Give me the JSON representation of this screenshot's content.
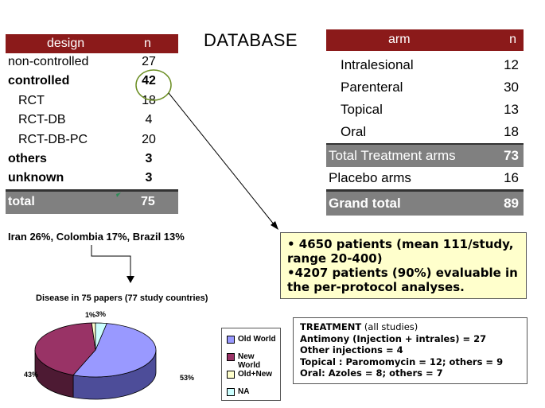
{
  "title": "DATABASE",
  "design_table": {
    "header_label": "design",
    "header_value": "n",
    "rows": [
      {
        "label": "non-controlled",
        "value": "27"
      },
      {
        "label": "controlled",
        "value": "42"
      },
      {
        "label": "RCT",
        "value": "18"
      },
      {
        "label": "RCT-DB",
        "value": "4"
      },
      {
        "label": "RCT-DB-PC",
        "value": "20"
      },
      {
        "label": "others",
        "value": "3"
      },
      {
        "label": "unknown",
        "value": "3"
      }
    ],
    "total_label": "total",
    "total_value": "75"
  },
  "arm_table": {
    "header_label": "arm",
    "header_value": "n",
    "rows": [
      {
        "label": "Intralesional",
        "value": "12"
      },
      {
        "label": "Parenteral",
        "value": "30"
      },
      {
        "label": "Topical",
        "value": "13"
      },
      {
        "label": "Oral",
        "value": "18"
      }
    ],
    "subtotal_label": "Total Treatment arms",
    "subtotal_value": "73",
    "placebo_label": "Placebo arms",
    "placebo_value": "16",
    "grand_label": "Grand total",
    "grand_value": "89"
  },
  "countries": "Iran 26%, Colombia 17%,  Brazil 13%",
  "patients": {
    "line1": "• 4650 patients (mean 111/study, range 20-400)",
    "line2": "•4207 patients (90%) evaluable in the per-protocol analyses."
  },
  "chart_data": {
    "type": "pie",
    "title": "Disease in 75 papers (77 study countries)",
    "labels": [
      "Old World",
      "New World",
      "Old+New",
      "NA"
    ],
    "values": [
      53,
      43,
      1,
      3
    ],
    "value_labels": [
      "53%",
      "43%",
      "1%",
      "3%"
    ],
    "colors": [
      "#9999ff",
      "#993366",
      "#ffffcc",
      "#ccffff"
    ],
    "legend_position": "right"
  },
  "treatment": {
    "heading": "TREATMENT",
    "heading_note": " (all studies)",
    "lines": [
      "Antimony (Injection + intrales) = 27",
      "Other injections = 4",
      "Topical : Paromomycin = 12; others = 9",
      "Oral: Azoles = 8;  others = 7"
    ]
  }
}
